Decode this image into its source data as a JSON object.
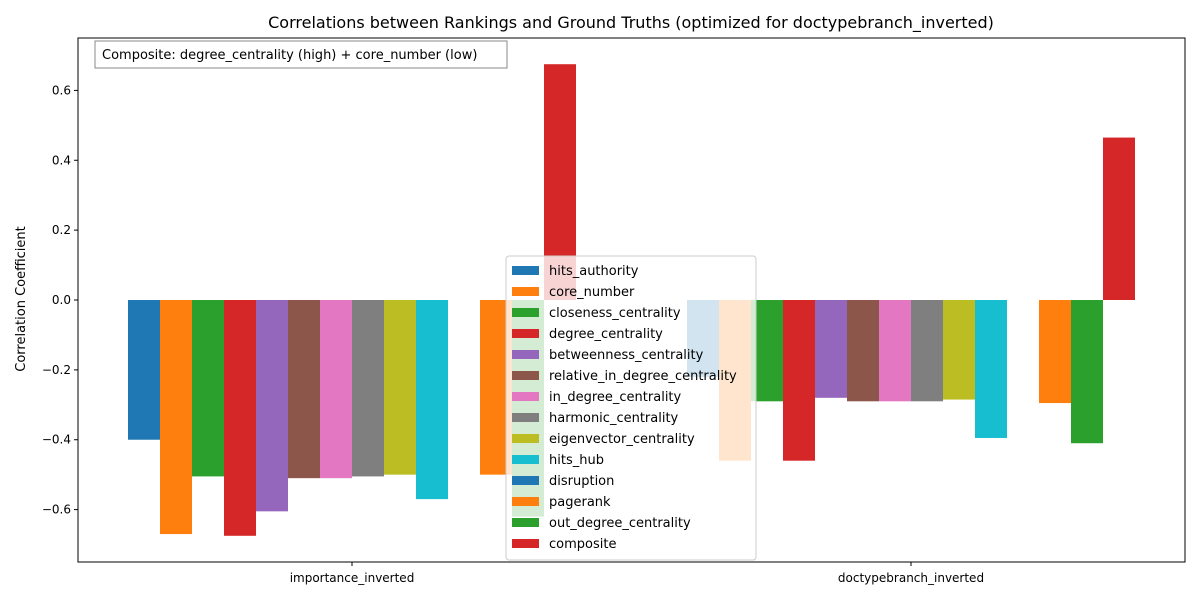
{
  "chart_data": {
    "type": "bar",
    "title": "Correlations between Rankings and Ground Truths (optimized for doctypebranch_inverted)",
    "xlabel": "",
    "ylabel": "Correlation Coefficient",
    "ylim": [
      -0.75,
      0.75
    ],
    "yticks": [
      -0.6,
      -0.4,
      -0.2,
      0.0,
      0.2,
      0.4,
      0.6
    ],
    "ytick_labels": [
      "−0.6",
      "−0.4",
      "−0.2",
      "0.0",
      "0.2",
      "0.4",
      "0.6"
    ],
    "categories": [
      "importance_inverted",
      "doctypebranch_inverted"
    ],
    "annotation": "Composite: degree_centrality (high) + core_number (low)",
    "legend_position": "lower center",
    "grid": false,
    "series": [
      {
        "name": "hits_authority",
        "color": "#1f77b4",
        "values": [
          -0.4,
          -0.22
        ]
      },
      {
        "name": "core_number",
        "color": "#ff7f0e",
        "values": [
          -0.67,
          -0.46
        ]
      },
      {
        "name": "closeness_centrality",
        "color": "#2ca02c",
        "values": [
          -0.505,
          -0.29
        ]
      },
      {
        "name": "degree_centrality",
        "color": "#d62728",
        "values": [
          -0.675,
          -0.46
        ]
      },
      {
        "name": "betweenness_centrality",
        "color": "#9467bd",
        "values": [
          -0.605,
          -0.28
        ]
      },
      {
        "name": "relative_in_degree_centrality",
        "color": "#8c564b",
        "values": [
          -0.51,
          -0.29
        ]
      },
      {
        "name": "in_degree_centrality",
        "color": "#e377c2",
        "values": [
          -0.51,
          -0.29
        ]
      },
      {
        "name": "harmonic_centrality",
        "color": "#7f7f7f",
        "values": [
          -0.505,
          -0.29
        ]
      },
      {
        "name": "eigenvector_centrality",
        "color": "#bcbd22",
        "values": [
          -0.5,
          -0.285
        ]
      },
      {
        "name": "hits_hub",
        "color": "#17becf",
        "values": [
          -0.57,
          -0.395
        ]
      },
      {
        "name": "disruption",
        "color": "#1f77b4",
        "values": [
          null,
          null
        ]
      },
      {
        "name": "pagerank",
        "color": "#ff7f0e",
        "values": [
          -0.5,
          -0.295
        ]
      },
      {
        "name": "out_degree_centrality",
        "color": "#2ca02c",
        "values": [
          -0.62,
          -0.41
        ]
      },
      {
        "name": "composite",
        "color": "#d62728",
        "values": [
          0.675,
          0.465
        ]
      }
    ]
  }
}
